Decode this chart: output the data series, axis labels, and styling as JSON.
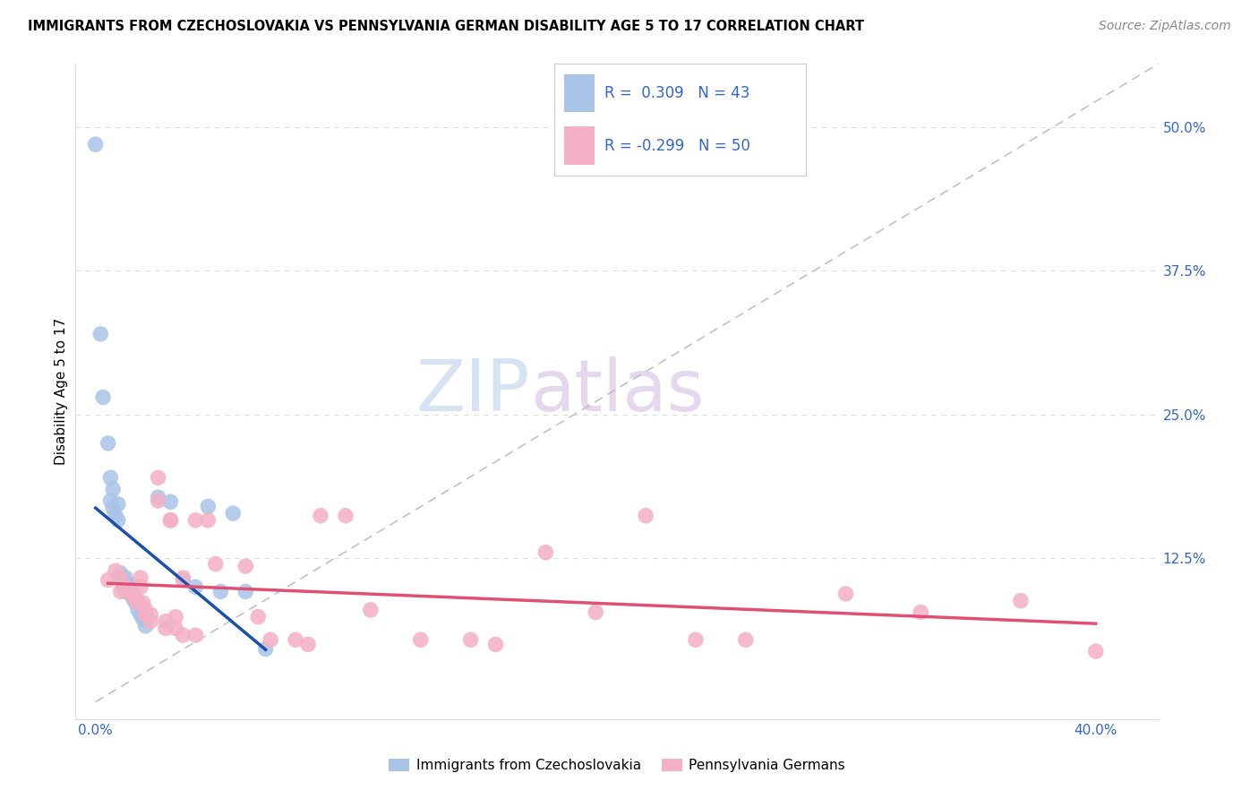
{
  "title": "IMMIGRANTS FROM CZECHOSLOVAKIA VS PENNSYLVANIA GERMAN DISABILITY AGE 5 TO 17 CORRELATION CHART",
  "source": "Source: ZipAtlas.com",
  "ylabel": "Disability Age 5 to 17",
  "legend_label1": "Immigrants from Czechoslovakia",
  "legend_label2": "Pennsylvania Germans",
  "blue_color": "#aac4e8",
  "blue_line_color": "#1a4faa",
  "pink_color": "#f4b0c4",
  "pink_line_color": "#e05075",
  "diagonal_color": "#bbbbbb",
  "watermark_zip": "ZIP",
  "watermark_atlas": "atlas",
  "blue_scatter": [
    [
      0.0,
      0.485
    ],
    [
      0.002,
      0.32
    ],
    [
      0.003,
      0.265
    ],
    [
      0.005,
      0.225
    ],
    [
      0.006,
      0.195
    ],
    [
      0.006,
      0.175
    ],
    [
      0.007,
      0.185
    ],
    [
      0.007,
      0.168
    ],
    [
      0.008,
      0.162
    ],
    [
      0.009,
      0.172
    ],
    [
      0.009,
      0.158
    ],
    [
      0.01,
      0.108
    ],
    [
      0.01,
      0.112
    ],
    [
      0.011,
      0.106
    ],
    [
      0.011,
      0.1
    ],
    [
      0.012,
      0.108
    ],
    [
      0.012,
      0.096
    ],
    [
      0.013,
      0.102
    ],
    [
      0.013,
      0.096
    ],
    [
      0.014,
      0.1
    ],
    [
      0.014,
      0.094
    ],
    [
      0.015,
      0.096
    ],
    [
      0.015,
      0.09
    ],
    [
      0.016,
      0.09
    ],
    [
      0.016,
      0.086
    ],
    [
      0.017,
      0.086
    ],
    [
      0.017,
      0.08
    ],
    [
      0.018,
      0.082
    ],
    [
      0.018,
      0.076
    ],
    [
      0.019,
      0.076
    ],
    [
      0.019,
      0.072
    ],
    [
      0.02,
      0.072
    ],
    [
      0.02,
      0.066
    ],
    [
      0.025,
      0.178
    ],
    [
      0.03,
      0.174
    ],
    [
      0.035,
      0.106
    ],
    [
      0.04,
      0.1
    ],
    [
      0.045,
      0.17
    ],
    [
      0.05,
      0.096
    ],
    [
      0.055,
      0.164
    ],
    [
      0.06,
      0.096
    ],
    [
      0.068,
      0.046
    ]
  ],
  "pink_scatter": [
    [
      0.005,
      0.106
    ],
    [
      0.008,
      0.114
    ],
    [
      0.01,
      0.108
    ],
    [
      0.01,
      0.096
    ],
    [
      0.012,
      0.1
    ],
    [
      0.014,
      0.094
    ],
    [
      0.015,
      0.094
    ],
    [
      0.016,
      0.09
    ],
    [
      0.017,
      0.086
    ],
    [
      0.018,
      0.108
    ],
    [
      0.018,
      0.1
    ],
    [
      0.019,
      0.086
    ],
    [
      0.02,
      0.08
    ],
    [
      0.02,
      0.076
    ],
    [
      0.022,
      0.076
    ],
    [
      0.022,
      0.07
    ],
    [
      0.025,
      0.195
    ],
    [
      0.025,
      0.175
    ],
    [
      0.028,
      0.07
    ],
    [
      0.028,
      0.064
    ],
    [
      0.03,
      0.158
    ],
    [
      0.03,
      0.158
    ],
    [
      0.032,
      0.074
    ],
    [
      0.032,
      0.064
    ],
    [
      0.035,
      0.108
    ],
    [
      0.035,
      0.058
    ],
    [
      0.04,
      0.158
    ],
    [
      0.04,
      0.058
    ],
    [
      0.045,
      0.158
    ],
    [
      0.048,
      0.12
    ],
    [
      0.06,
      0.118
    ],
    [
      0.065,
      0.074
    ],
    [
      0.07,
      0.054
    ],
    [
      0.08,
      0.054
    ],
    [
      0.085,
      0.05
    ],
    [
      0.09,
      0.162
    ],
    [
      0.1,
      0.162
    ],
    [
      0.11,
      0.08
    ],
    [
      0.13,
      0.054
    ],
    [
      0.15,
      0.054
    ],
    [
      0.16,
      0.05
    ],
    [
      0.18,
      0.13
    ],
    [
      0.2,
      0.078
    ],
    [
      0.22,
      0.162
    ],
    [
      0.24,
      0.054
    ],
    [
      0.26,
      0.054
    ],
    [
      0.3,
      0.094
    ],
    [
      0.33,
      0.078
    ],
    [
      0.37,
      0.088
    ],
    [
      0.4,
      0.044
    ]
  ],
  "xlim": [
    -0.008,
    0.425
  ],
  "ylim": [
    -0.015,
    0.555
  ],
  "grid_color": "#dddddd",
  "title_fontsize": 10.5,
  "source_fontsize": 10,
  "tick_fontsize": 11,
  "legend_fontsize": 12,
  "ylabel_fontsize": 11
}
